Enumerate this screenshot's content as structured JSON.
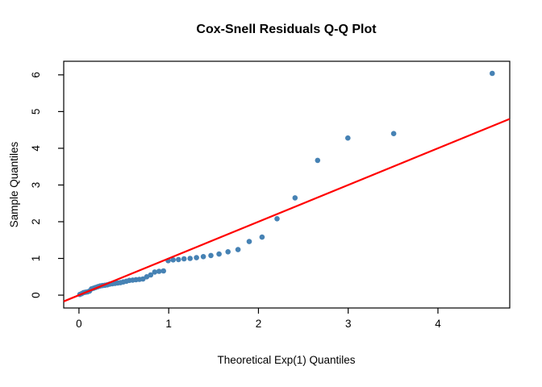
{
  "chart_data": {
    "type": "scatter",
    "title": "Cox-Snell Residuals Q-Q Plot",
    "xlabel": "Theoretical Exp(1) Quantiles",
    "ylabel": "Sample Quantiles",
    "xlim": [
      -0.17,
      4.8
    ],
    "ylim": [
      -0.35,
      6.37
    ],
    "x_ticks": [
      0,
      1,
      2,
      3,
      4
    ],
    "y_ticks": [
      0,
      1,
      2,
      3,
      4,
      5,
      6
    ],
    "grid": false,
    "legend": "none",
    "point_color": "#4682B4",
    "axis_color": "#000000",
    "reference_line": {
      "slope": 1,
      "intercept": 0,
      "color": "#FF0000"
    },
    "points": [
      [
        0.01,
        0.02
      ],
      [
        0.03,
        0.04
      ],
      [
        0.051,
        0.07
      ],
      [
        0.073,
        0.08
      ],
      [
        0.094,
        0.09
      ],
      [
        0.117,
        0.11
      ],
      [
        0.139,
        0.17
      ],
      [
        0.163,
        0.19
      ],
      [
        0.186,
        0.21
      ],
      [
        0.211,
        0.23
      ],
      [
        0.236,
        0.25
      ],
      [
        0.261,
        0.26
      ],
      [
        0.288,
        0.27
      ],
      [
        0.315,
        0.28
      ],
      [
        0.342,
        0.3
      ],
      [
        0.371,
        0.31
      ],
      [
        0.4,
        0.32
      ],
      [
        0.431,
        0.33
      ],
      [
        0.462,
        0.34
      ],
      [
        0.494,
        0.36
      ],
      [
        0.528,
        0.38
      ],
      [
        0.562,
        0.4
      ],
      [
        0.598,
        0.41
      ],
      [
        0.635,
        0.42
      ],
      [
        0.673,
        0.43
      ],
      [
        0.713,
        0.44
      ],
      [
        0.755,
        0.5
      ],
      [
        0.799,
        0.55
      ],
      [
        0.844,
        0.63
      ],
      [
        0.892,
        0.65
      ],
      [
        0.942,
        0.66
      ],
      [
        0.994,
        0.94
      ],
      [
        1.05,
        0.96
      ],
      [
        1.109,
        0.97
      ],
      [
        1.171,
        0.99
      ],
      [
        1.238,
        1.0
      ],
      [
        1.309,
        1.02
      ],
      [
        1.386,
        1.05
      ],
      [
        1.47,
        1.08
      ],
      [
        1.561,
        1.12
      ],
      [
        1.661,
        1.18
      ],
      [
        1.772,
        1.24
      ],
      [
        1.897,
        1.46
      ],
      [
        2.04,
        1.58
      ],
      [
        2.207,
        2.08
      ],
      [
        2.408,
        2.65
      ],
      [
        2.659,
        3.67
      ],
      [
        2.996,
        4.28
      ],
      [
        3.507,
        4.4
      ],
      [
        4.605,
        6.04
      ]
    ]
  }
}
